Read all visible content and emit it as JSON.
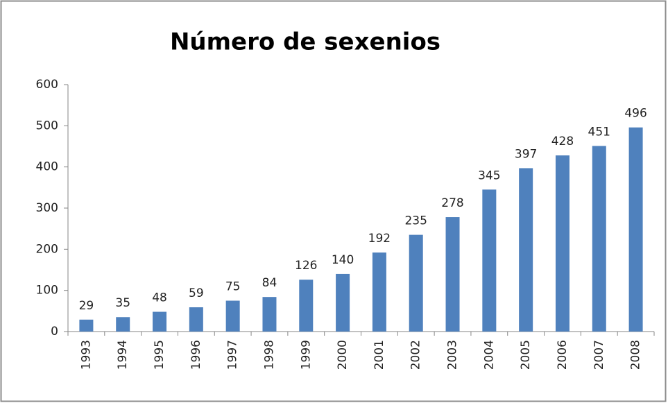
{
  "chart_data": {
    "type": "bar",
    "title": "Número de sexenios",
    "categories": [
      "1993",
      "1994",
      "1995",
      "1996",
      "1997",
      "1998",
      "1999",
      "2000",
      "2001",
      "2002",
      "2003",
      "2004",
      "2005",
      "2006",
      "2007",
      "2008"
    ],
    "values": [
      29,
      35,
      48,
      59,
      75,
      84,
      126,
      140,
      192,
      235,
      278,
      345,
      397,
      428,
      451,
      496
    ],
    "color": "#4f81bd",
    "ylim": [
      0,
      600
    ],
    "yticks": [
      0,
      100,
      200,
      300,
      400,
      500,
      600
    ],
    "grid": false
  }
}
